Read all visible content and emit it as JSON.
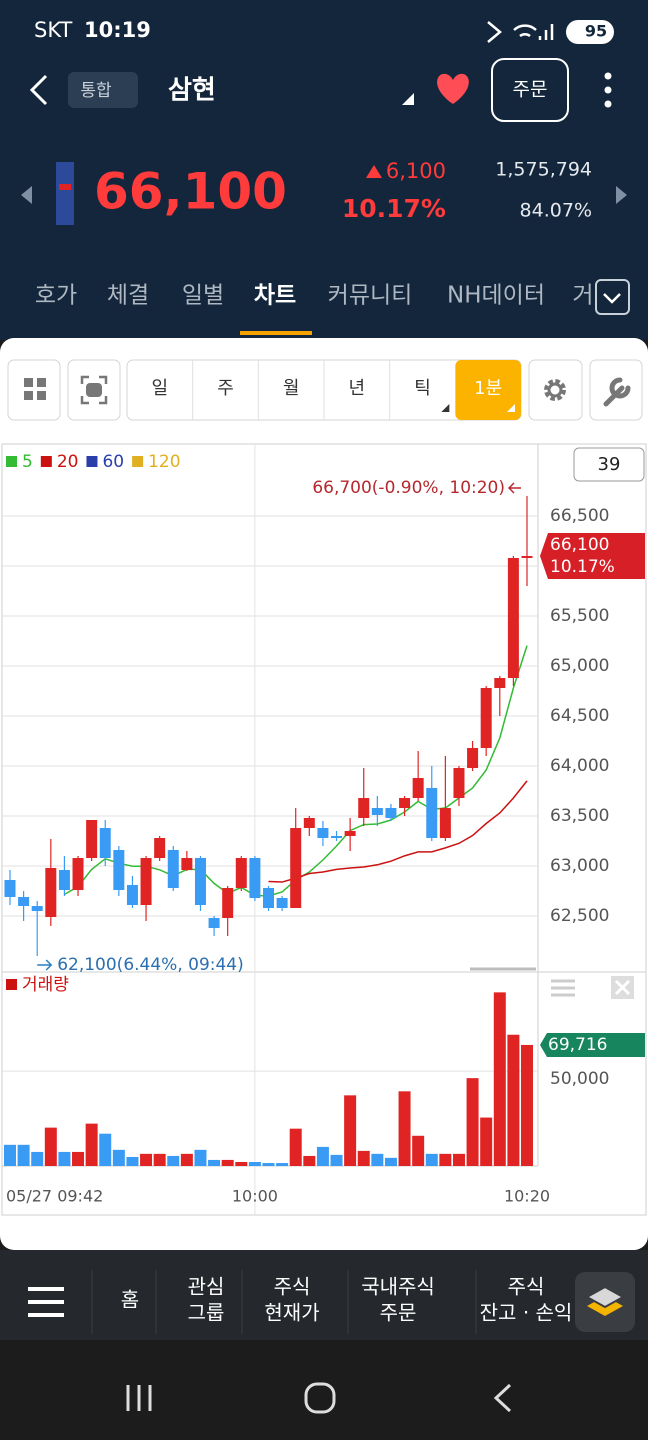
{
  "status": {
    "carrier": "SKT",
    "time": "10:19",
    "battery": "95"
  },
  "header": {
    "market": "통합",
    "name": "삼현",
    "order": "주문"
  },
  "quote": {
    "price": "66,100",
    "change": "6,100",
    "rate": "10.17%",
    "volume": "1,575,794",
    "turnover": "84.07%"
  },
  "tabs": [
    "호가",
    "체결",
    "일별",
    "차트",
    "커뮤니티",
    "NH데이터",
    "거"
  ],
  "toolbar": [
    "일",
    "주",
    "월",
    "년",
    "틱",
    "1분"
  ],
  "nav": [
    [
      "홈"
    ],
    [
      "관심",
      "그룹"
    ],
    [
      "주식",
      "현재가"
    ],
    [
      "국내주식",
      "주문"
    ],
    [
      "주식",
      "잔고 · 손익"
    ]
  ],
  "chart_data": {
    "type": "candlestick",
    "count": 39,
    "up_color": "#e02424",
    "down_color": "#3a9bf5",
    "flat_color": "#1e7a58",
    "moving_averages": [
      {
        "name": "5",
        "color": "#33bb33",
        "period": 5
      },
      {
        "name": "20",
        "color": "#cc1111",
        "period": 20
      },
      {
        "name": "60",
        "color": "#2a3faa",
        "period": 60
      },
      {
        "name": "120",
        "color": "#e0b020",
        "period": 120
      }
    ],
    "open": [
      62860,
      62690,
      62600,
      62490,
      62960,
      62760,
      63080,
      63380,
      63160,
      62810,
      62610,
      63080,
      63160,
      62960,
      63080,
      62480,
      62480,
      62780,
      63080,
      62780,
      62680,
      62580,
      63380,
      63380,
      63300,
      63300,
      63480,
      63580,
      63580,
      63580,
      63680,
      63780,
      63280,
      63680,
      63980,
      64180,
      64780,
      64880,
      66080
    ],
    "high": [
      62960,
      62750,
      62650,
      63270,
      63100,
      63100,
      63460,
      63460,
      63200,
      62900,
      63100,
      63300,
      63200,
      63150,
      63100,
      62500,
      62800,
      63100,
      63100,
      62800,
      62700,
      63580,
      63500,
      63450,
      63350,
      63480,
      63980,
      63700,
      63620,
      63700,
      64150,
      64000,
      64100,
      64000,
      64250,
      64800,
      64900,
      66100,
      66700
    ],
    "low": [
      62610,
      62450,
      62100,
      62400,
      62700,
      62700,
      63050,
      63000,
      62700,
      62580,
      62450,
      63050,
      62750,
      62950,
      62550,
      62300,
      62300,
      62750,
      62650,
      62550,
      62550,
      62580,
      63300,
      63200,
      63250,
      63150,
      63400,
      63400,
      63450,
      63500,
      63650,
      63250,
      63250,
      63600,
      63950,
      64100,
      64500,
      64800,
      65800
    ],
    "close": [
      62690,
      62600,
      62550,
      62980,
      62760,
      63080,
      63460,
      63080,
      62760,
      62610,
      63080,
      63280,
      62780,
      63080,
      62610,
      62380,
      62780,
      63080,
      62680,
      62580,
      62580,
      63380,
      63480,
      63280,
      63280,
      63350,
      63680,
      63510,
      63480,
      63680,
      63880,
      63280,
      63580,
      63980,
      64180,
      64780,
      64880,
      66080,
      66100
    ],
    "ylim": [
      62010,
      67210
    ],
    "yticks": [
      {
        "value": 62500,
        "label": "62,500"
      },
      {
        "value": 63000,
        "label": "63,000"
      },
      {
        "value": 63500,
        "label": "63,500"
      },
      {
        "value": 64000,
        "label": "64,000"
      },
      {
        "value": 64500,
        "label": "64,500"
      },
      {
        "value": 65000,
        "label": "65,000"
      },
      {
        "value": 65500,
        "label": "65,500"
      },
      {
        "value": 66000,
        "label": "66,000"
      },
      {
        "value": 66500,
        "label": "66,500"
      }
    ],
    "x_labels": [
      {
        "index": 0,
        "label": "05/27 09:42"
      },
      {
        "index": 18,
        "label": "10:00"
      },
      {
        "index": 38,
        "label": "10:20"
      }
    ],
    "high_annotation": "66,700(-0.90%, 10:20)",
    "low_annotation": "62,100(6.44%, 09:44)",
    "price_tag": {
      "price": "66,100",
      "rate": "10.17%"
    },
    "volume": {
      "name": "거래량",
      "color": "#cc1111",
      "values": [
        12200,
        12200,
        8100,
        22100,
        8100,
        8100,
        24400,
        18600,
        9300,
        5200,
        7000,
        7000,
        5800,
        7000,
        9300,
        3500,
        3500,
        2300,
        2300,
        1700,
        1700,
        21500,
        5800,
        11000,
        6400,
        40700,
        8700,
        7000,
        4700,
        43000,
        17400,
        7000,
        7000,
        7000,
        50600,
        27900,
        100000,
        75600,
        69716
      ],
      "ylim": [
        0,
        110000
      ],
      "yticks": [
        {
          "value": 50000,
          "label": "50,000"
        }
      ],
      "last_label": "69,716"
    }
  }
}
